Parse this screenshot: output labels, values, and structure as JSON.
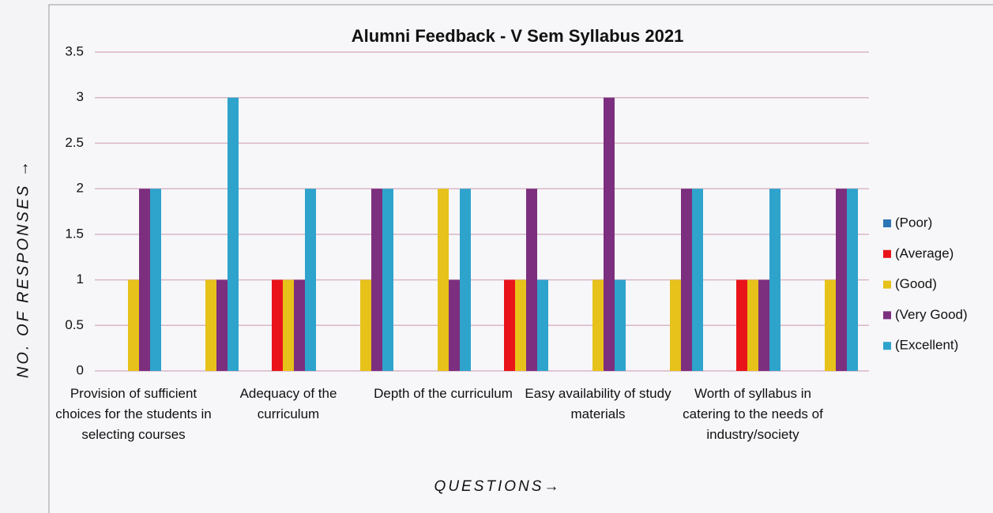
{
  "chart_data": {
    "type": "bar",
    "title": "Alumni Feedback - V Sem Syllabus 2021",
    "y_label": "NO. OF RESPONSES →",
    "x_label": "QUESTIONS→",
    "categories": [
      "Provision of sufficient choices for the students in selecting courses",
      null,
      "Adequacy of the curriculum",
      null,
      "Depth of the curriculum",
      null,
      "Easy availability of study materials",
      null,
      "Worth of syllabus in catering to the needs of industry/society",
      null
    ],
    "series": [
      {
        "name": "(Poor)",
        "color": "#2e75b6",
        "values": [
          0,
          0,
          0,
          0,
          0,
          0,
          0,
          0,
          0,
          0
        ]
      },
      {
        "name": "(Average)",
        "color": "#e8141a",
        "values": [
          0,
          0,
          1,
          0,
          0,
          1,
          0,
          0,
          1,
          0
        ]
      },
      {
        "name": "(Good)",
        "color": "#e6c21a",
        "values": [
          1,
          1,
          1,
          1,
          2,
          1,
          1,
          1,
          1,
          1
        ]
      },
      {
        "name": "(Very Good)",
        "color": "#7b2f7e",
        "values": [
          2,
          1,
          1,
          2,
          1,
          2,
          3,
          2,
          1,
          2
        ]
      },
      {
        "name": "(Excellent)",
        "color": "#2ea3cc",
        "values": [
          2,
          3,
          2,
          2,
          2,
          1,
          1,
          2,
          2,
          2
        ]
      }
    ],
    "ylim": [
      0,
      3.5
    ],
    "yticks": [
      0,
      0.5,
      1,
      1.5,
      2,
      2.5,
      3,
      3.5
    ],
    "grid": true,
    "legend": "right"
  }
}
